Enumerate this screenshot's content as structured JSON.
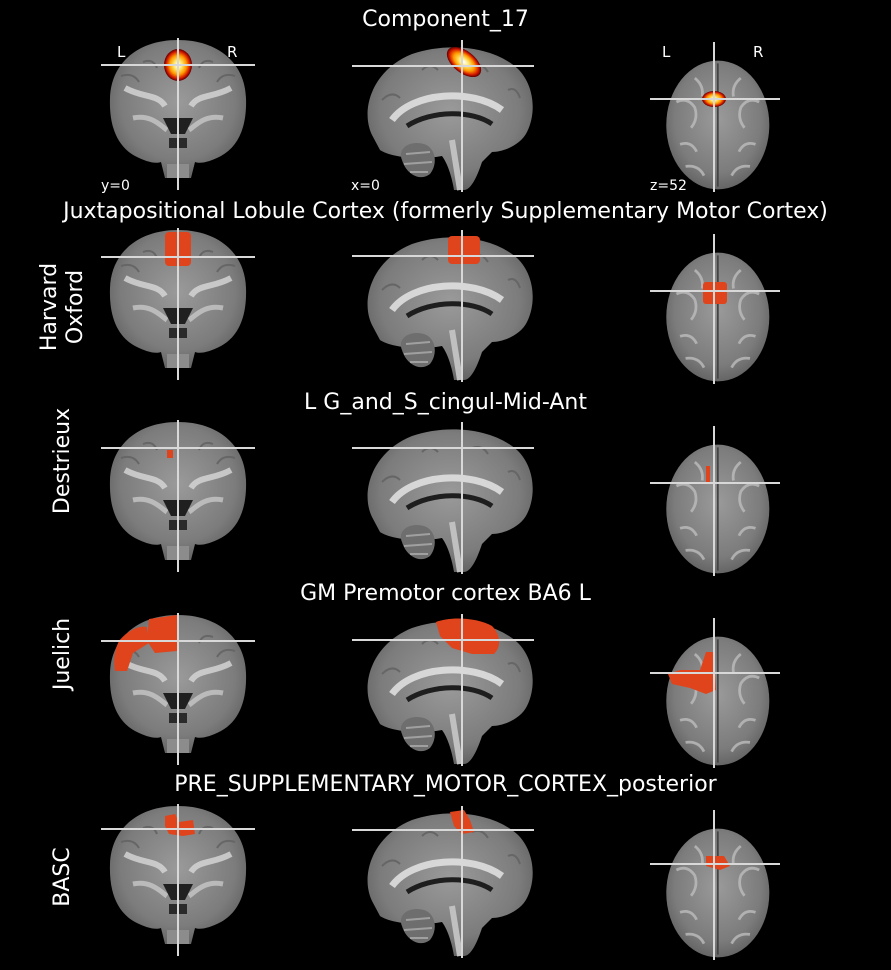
{
  "component": {
    "title": "Component_17",
    "coords": {
      "y": "y=0",
      "x": "x=0",
      "z": "z=52"
    },
    "orientation": {
      "left": "L",
      "right": "R"
    },
    "colormap": [
      "#ffffff",
      "#ffe66a",
      "#ff9a00",
      "#d21600",
      "#5a0000"
    ]
  },
  "atlases": [
    {
      "label_line1": "Harvard",
      "label_line2": "Oxford",
      "region": "Juxtapositional Lobule Cortex (formerly Supplementary Motor Cortex)"
    },
    {
      "label_line1": "Destrieux",
      "label_line2": "",
      "region": "L G_and_S_cingul-Mid-Ant"
    },
    {
      "label_line1": "Juelich",
      "label_line2": "",
      "region": "GM Premotor cortex BA6 L"
    },
    {
      "label_line1": "BASC",
      "label_line2": "",
      "region": "PRE_SUPPLEMENTARY_MOTOR_CORTEX_posterior"
    }
  ],
  "colors": {
    "background": "#000000",
    "overlay": "#e0441c",
    "crosshair": "#d8d8d8"
  }
}
